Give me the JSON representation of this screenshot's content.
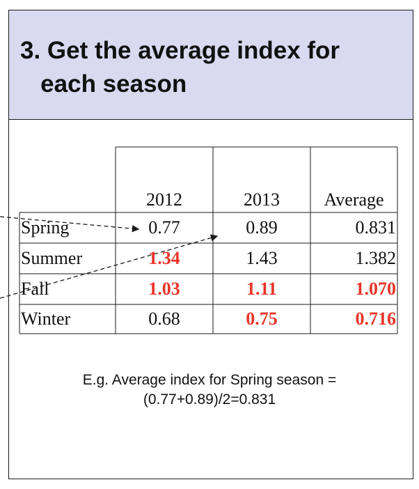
{
  "slide": {
    "title_line1": "3. Get the average index for",
    "title_line2": "   each season"
  },
  "table": {
    "headers": [
      "2012",
      "2013",
      "Average"
    ],
    "rows": [
      {
        "season": "Spring",
        "v2012": "0.77",
        "v2013": "0.89",
        "avg": "0.831"
      },
      {
        "season": "Summer",
        "v2012": "1.34",
        "v2013": "1.43",
        "avg": "1.382"
      },
      {
        "season": "Fall",
        "v2012": "1.03",
        "v2013": "1.11",
        "avg": "1.070"
      },
      {
        "season": "Winter",
        "v2012": "0.68",
        "v2013": "0.75",
        "avg": "0.716"
      }
    ],
    "highlight_color": "#e8352a"
  },
  "note": {
    "line1": "E.g. Average index for Spring season =",
    "line2": "(0.77+0.89)/2=0.831"
  }
}
